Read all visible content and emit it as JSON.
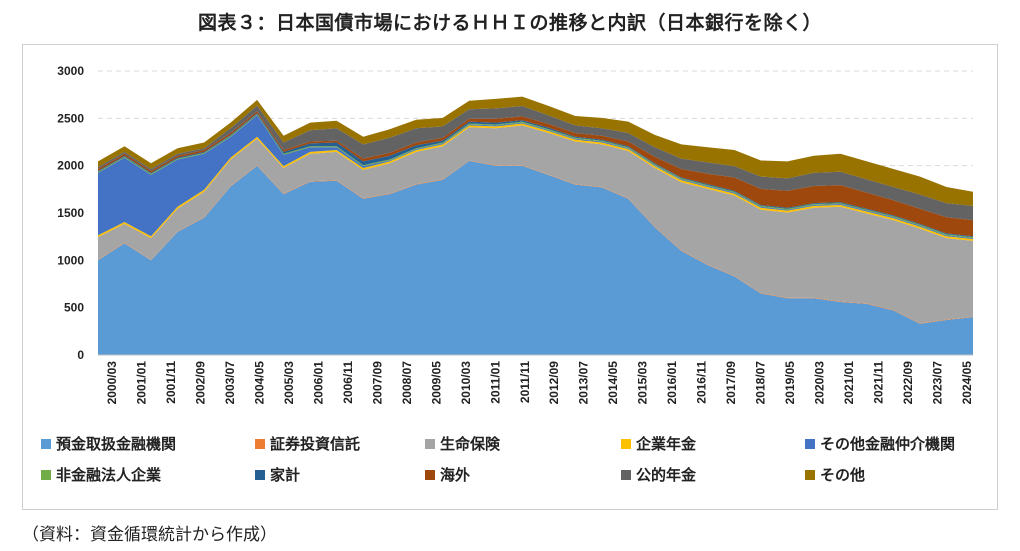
{
  "page": {
    "title": "図表３：日本国債市場におけるＨＨＩの推移と内訳（日本銀行を除く）",
    "source": "（資料：資金循環統計から作成）"
  },
  "chart_data": {
    "type": "area",
    "stacked": true,
    "title": "図表３：日本国債市場におけるＨＨＩの推移と内訳（日本銀行を除く）",
    "xlabel": "",
    "ylabel": "",
    "ylim": [
      0,
      3000
    ],
    "yticks": [
      "0",
      "500",
      "1000",
      "1500",
      "2000",
      "2500",
      "3000"
    ],
    "grid": true,
    "legend_position": "bottom",
    "x_labels": [
      "2000/03",
      "2001/01",
      "2001/11",
      "2002/09",
      "2003/07",
      "2004/05",
      "2005/03",
      "2006/01",
      "2006/11",
      "2007/09",
      "2008/07",
      "2009/05",
      "2010/03",
      "2011/01",
      "2011/11",
      "2012/09",
      "2013/07",
      "2014/05",
      "2015/03",
      "2016/01",
      "2016/11",
      "2017/09",
      "2018/07",
      "2019/05",
      "2020/03",
      "2021/01",
      "2021/11",
      "2022/09",
      "2023/07",
      "2024/05"
    ],
    "x": [
      "2000/03",
      "2000/12",
      "2001/09",
      "2002/06",
      "2003/03",
      "2003/12",
      "2004/09",
      "2005/06",
      "2006/03",
      "2006/12",
      "2007/09",
      "2008/06",
      "2009/03",
      "2009/12",
      "2010/09",
      "2011/06",
      "2012/03",
      "2012/12",
      "2013/09",
      "2014/06",
      "2015/03",
      "2015/12",
      "2016/09",
      "2017/06",
      "2018/03",
      "2018/12",
      "2019/09",
      "2020/06",
      "2021/03",
      "2021/12",
      "2022/09",
      "2023/06",
      "2024/03",
      "2024/12"
    ],
    "series": [
      {
        "name": "預金取扱金融機関",
        "color": "#5b9bd5",
        "values": [
          1000,
          1180,
          1000,
          1300,
          1450,
          1780,
          2000,
          1700,
          1830,
          1840,
          1650,
          1700,
          1800,
          1850,
          2050,
          2000,
          2000,
          1900,
          1800,
          1770,
          1650,
          1350,
          1100,
          950,
          830,
          650,
          600,
          600,
          560,
          540,
          470,
          330,
          370,
          400
        ]
      },
      {
        "name": "証券投資信託",
        "color": "#ed7d31",
        "values": [
          5,
          5,
          5,
          5,
          5,
          5,
          5,
          5,
          5,
          5,
          5,
          5,
          5,
          5,
          5,
          5,
          5,
          5,
          5,
          5,
          5,
          5,
          5,
          5,
          5,
          5,
          5,
          5,
          5,
          5,
          5,
          5,
          5,
          5
        ]
      },
      {
        "name": "生命保険",
        "color": "#a5a5a5",
        "values": [
          240,
          200,
          230,
          240,
          270,
          280,
          280,
          270,
          290,
          300,
          300,
          320,
          340,
          350,
          350,
          390,
          420,
          440,
          450,
          450,
          500,
          620,
          720,
          800,
          850,
          880,
          900,
          950,
          1000,
          950,
          950,
          1000,
          860,
          800
        ]
      },
      {
        "name": "企業年金",
        "color": "#ffc000",
        "values": [
          20,
          20,
          20,
          20,
          20,
          20,
          20,
          20,
          20,
          20,
          20,
          20,
          20,
          20,
          20,
          20,
          20,
          20,
          20,
          20,
          20,
          20,
          20,
          20,
          20,
          20,
          20,
          20,
          20,
          20,
          20,
          20,
          20,
          20
        ]
      },
      {
        "name": "その他金融仲介機関",
        "color": "#4472c4",
        "values": [
          660,
          680,
          650,
          500,
          380,
          220,
          230,
          120,
          50,
          30,
          20,
          10,
          10,
          10,
          10,
          10,
          10,
          10,
          10,
          10,
          10,
          10,
          10,
          10,
          10,
          10,
          10,
          10,
          10,
          10,
          10,
          10,
          10,
          10
        ]
      },
      {
        "name": "非金融法人企業",
        "color": "#70ad47",
        "values": [
          10,
          10,
          10,
          10,
          10,
          10,
          10,
          10,
          10,
          10,
          10,
          10,
          10,
          10,
          10,
          10,
          10,
          10,
          10,
          10,
          10,
          10,
          10,
          10,
          10,
          10,
          10,
          10,
          10,
          10,
          10,
          10,
          10,
          10
        ]
      },
      {
        "name": "家計",
        "color": "#255e91",
        "values": [
          10,
          10,
          10,
          10,
          10,
          10,
          10,
          20,
          30,
          40,
          40,
          40,
          30,
          20,
          20,
          20,
          15,
          15,
          10,
          10,
          10,
          10,
          10,
          10,
          10,
          10,
          10,
          10,
          10,
          10,
          10,
          10,
          10,
          10
        ]
      },
      {
        "name": "海外",
        "color": "#9e480e",
        "values": [
          20,
          20,
          20,
          20,
          20,
          20,
          20,
          20,
          20,
          20,
          30,
          30,
          30,
          30,
          30,
          40,
          40,
          40,
          40,
          40,
          50,
          70,
          90,
          110,
          140,
          170,
          180,
          180,
          180,
          170,
          160,
          160,
          170,
          170
        ]
      },
      {
        "name": "公的年金",
        "color": "#636363",
        "values": [
          20,
          20,
          20,
          20,
          20,
          50,
          60,
          80,
          120,
          130,
          150,
          160,
          150,
          120,
          100,
          110,
          110,
          90,
          80,
          80,
          90,
          100,
          110,
          120,
          120,
          130,
          130,
          140,
          140,
          140,
          140,
          150,
          150,
          150
        ]
      },
      {
        "name": "その他",
        "color": "#997300",
        "values": [
          60,
          60,
          60,
          60,
          60,
          60,
          60,
          70,
          80,
          80,
          80,
          90,
          90,
          90,
          90,
          100,
          100,
          100,
          100,
          110,
          120,
          130,
          150,
          160,
          170,
          170,
          180,
          180,
          190,
          190,
          190,
          190,
          170,
          150
        ]
      }
    ]
  }
}
